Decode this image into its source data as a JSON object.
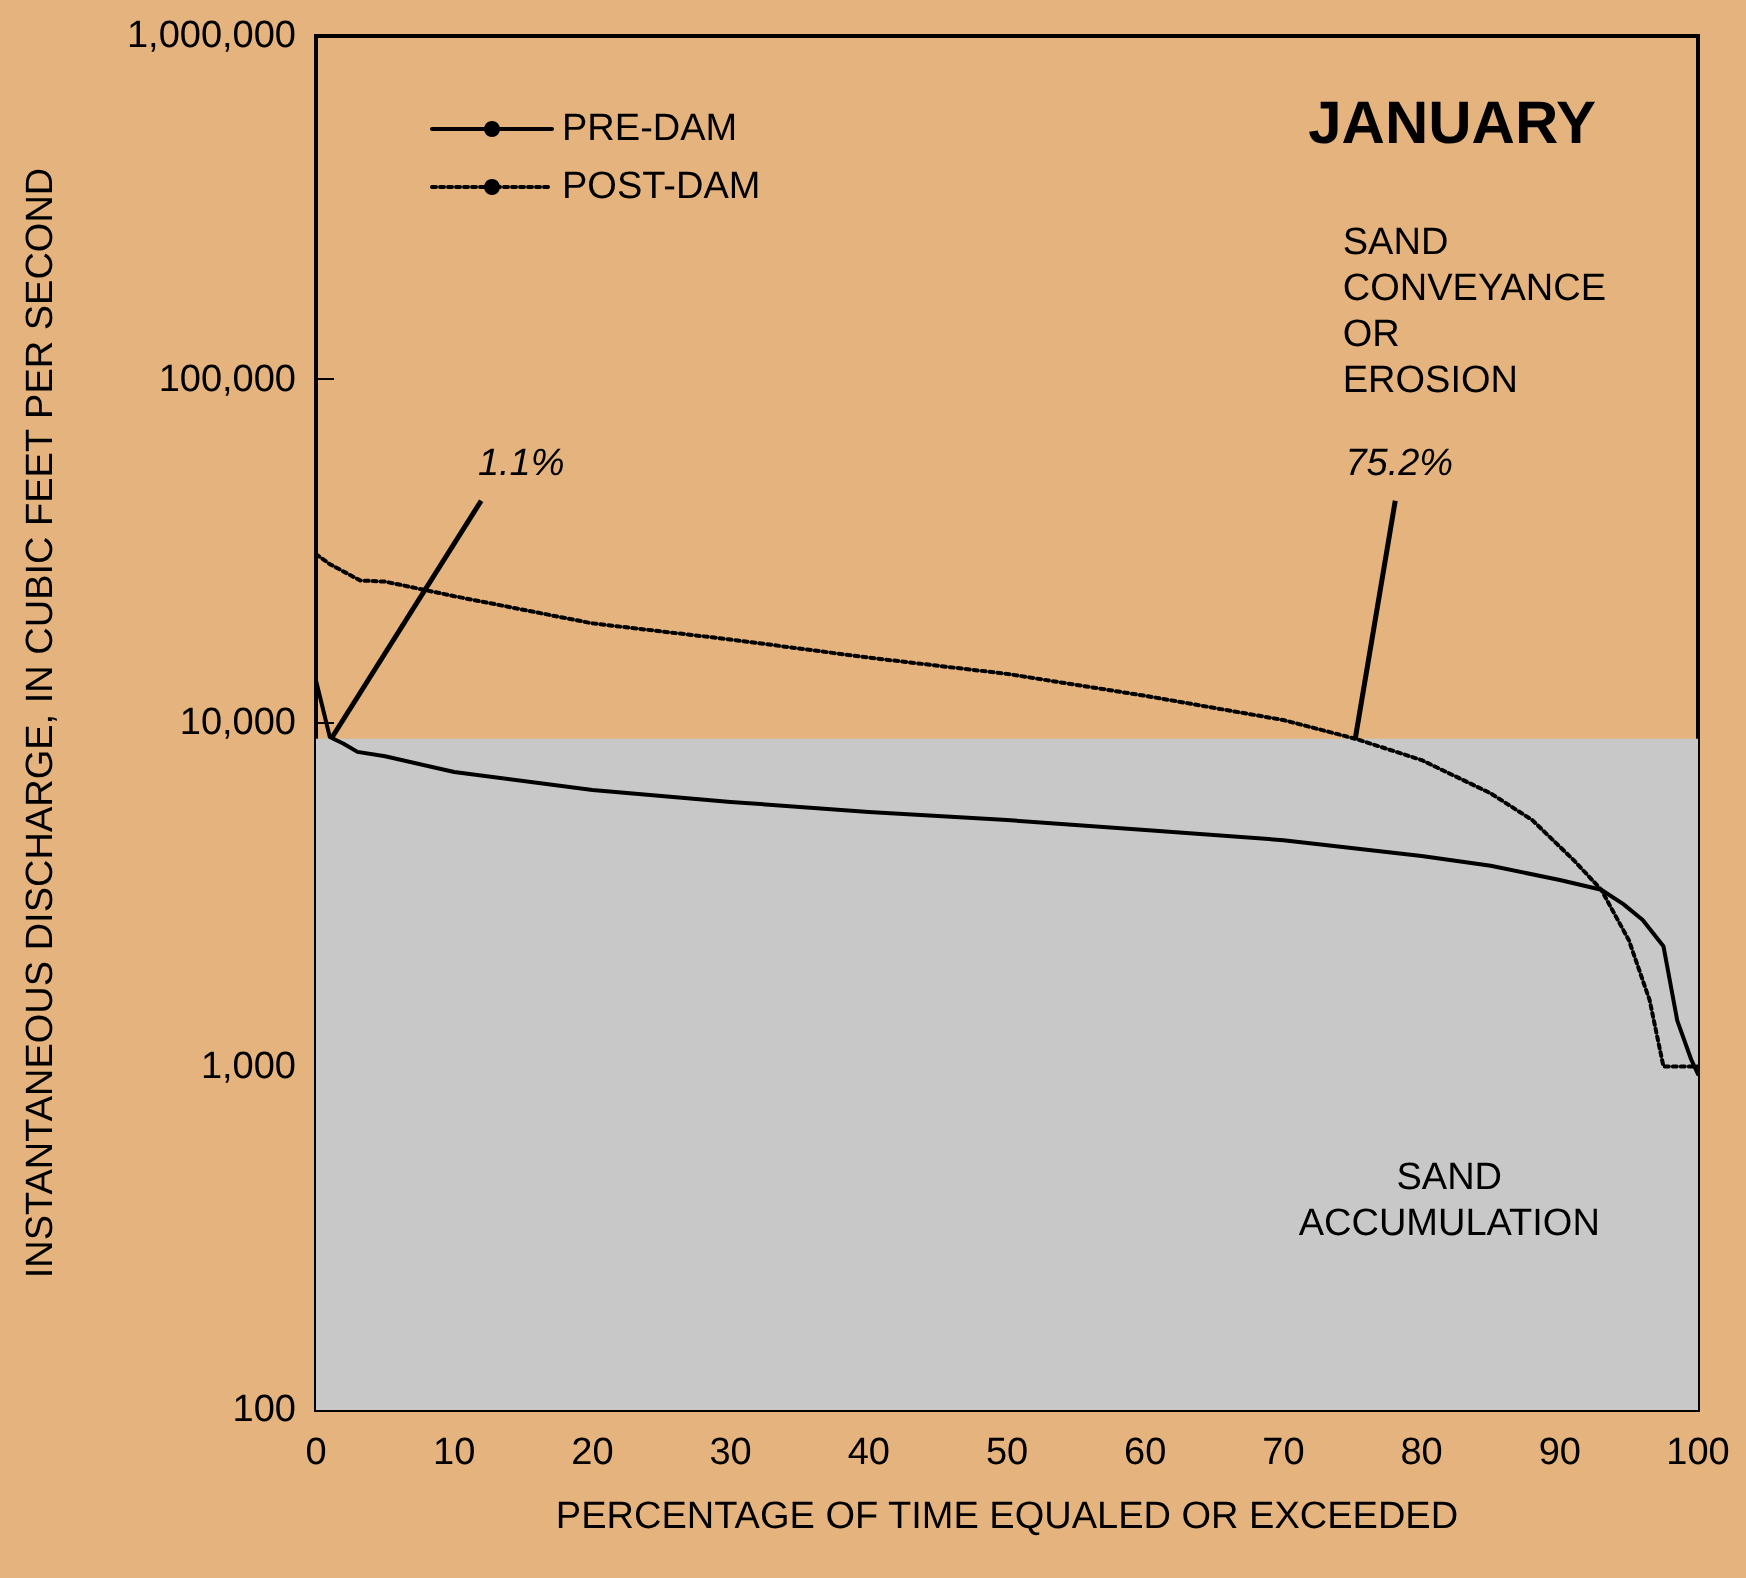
{
  "chart_data": {
    "type": "line",
    "title": "JANUARY",
    "xlabel": "PERCENTAGE OF TIME EQUALED OR EXCEEDED",
    "ylabel": "INSTANTANEOUS DISCHARGE, IN CUBIC FEET PER SECOND",
    "series": [
      {
        "name": "PRE-DAM",
        "color": "#000000",
        "line_style": "solid",
        "x": [
          0,
          1,
          2,
          3,
          5,
          10,
          20,
          30,
          40,
          50,
          60,
          70,
          80,
          85,
          90,
          93,
          94.6,
          96,
          97.5,
          98.5,
          99.5,
          100
        ],
        "values": [
          13300,
          9100,
          8700,
          8240,
          8000,
          7200,
          6380,
          5890,
          5510,
          5220,
          4880,
          4560,
          4100,
          3840,
          3490,
          3270,
          2970,
          2670,
          2240,
          1360,
          1050,
          950
        ]
      },
      {
        "name": "POST-DAM",
        "color": "#000000",
        "line_style": "dotted",
        "x": [
          0,
          1,
          3.2,
          5,
          10,
          20,
          30,
          40,
          50,
          60,
          70,
          75.2,
          80,
          85,
          88,
          91,
          93,
          95,
          96.5,
          97.5,
          100
        ],
        "values": [
          31000,
          29000,
          26000,
          25800,
          23400,
          19500,
          17500,
          15500,
          13900,
          12000,
          10200,
          9000,
          7800,
          6240,
          5220,
          3990,
          3270,
          2330,
          1560,
          1000,
          1000
        ]
      }
    ],
    "bands": [
      {
        "axis": "y",
        "from": 100,
        "to": 9000,
        "color": "#c8c8c8",
        "label": "SAND\nACCUMULATION"
      }
    ],
    "annotations": [
      {
        "text": "1.1%",
        "x": 1.1,
        "y": 9000
      },
      {
        "text": "75.2%",
        "x": 75.2,
        "y": 9000
      },
      "SAND\nCONVEYANCE\nOR\nEROSION"
    ],
    "xlim": [
      0,
      100
    ],
    "xticks": [
      0,
      10,
      20,
      30,
      40,
      50,
      60,
      70,
      80,
      90,
      100
    ],
    "ylim": [
      100,
      1000000
    ],
    "yticks": [
      100,
      {
        "value": 1000,
        "label": "1,000"
      },
      {
        "value": 10000,
        "label": "10,000"
      },
      {
        "value": 100000,
        "label": "100,000"
      },
      {
        "value": 1000000,
        "label": "1,000,000"
      }
    ],
    "log": "y",
    "grid": false,
    "legend": "top left",
    "marker": "none"
  }
}
